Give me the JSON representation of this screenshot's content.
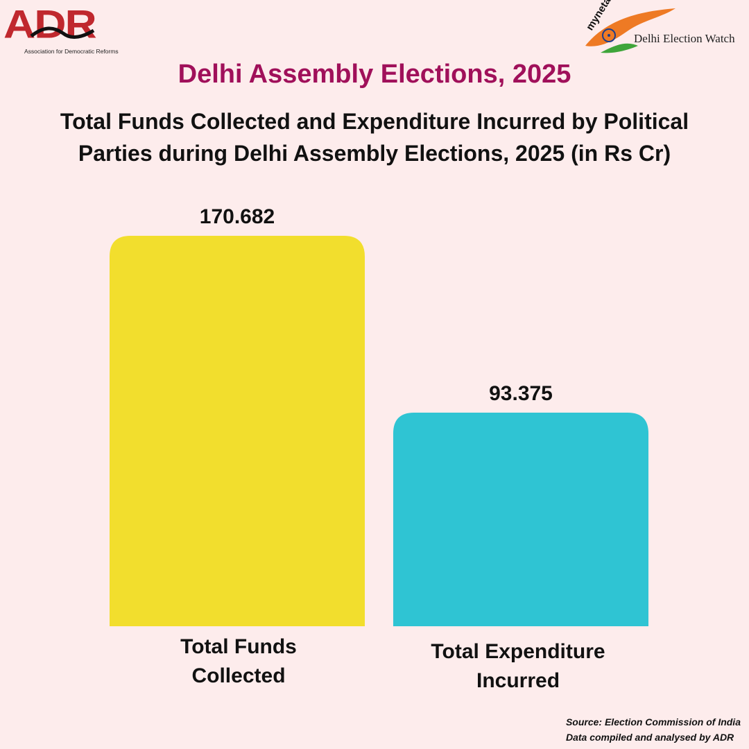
{
  "logos": {
    "adr_name": "ADR",
    "adr_full": "Association for Democratic Reforms",
    "myneta": "myneta.info",
    "election_watch": "Delhi Election Watch"
  },
  "heading": "Delhi Assembly Elections, 2025",
  "subtitle": "Total Funds Collected and Expenditure Incurred by Political Parties during Delhi Assembly Elections, 2025 (in Rs Cr)",
  "source": {
    "line1": "Source: Election Commission of India",
    "line2": "Data compiled and analysed by ADR"
  },
  "colors": {
    "background": "#fdecec",
    "heading": "#a0105a",
    "bar_funds": "#f2de2d",
    "bar_expenditure": "#2fc4d3"
  },
  "chart_data": {
    "type": "bar",
    "title": "Total Funds Collected and Expenditure Incurred by Political Parties during Delhi Assembly Elections, 2025 (in Rs Cr)",
    "categories": [
      [
        "Total Funds",
        "Collected"
      ],
      [
        "Total Expenditure",
        "Incurred"
      ]
    ],
    "values": [
      170.682,
      93.375
    ],
    "value_labels": [
      "170.682",
      "93.375"
    ],
    "bar_colors": [
      "#f2de2d",
      "#2fc4d3"
    ],
    "ylim": [
      0,
      170.682
    ],
    "xlabel": "",
    "ylabel": "",
    "grid": false,
    "legend": "none"
  }
}
